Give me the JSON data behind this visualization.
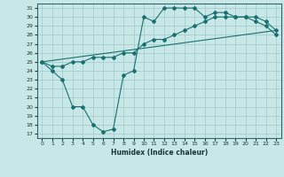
{
  "xlabel": "Humidex (Indice chaleur)",
  "xlim": [
    -0.5,
    23.5
  ],
  "ylim": [
    16.5,
    31.5
  ],
  "yticks": [
    17,
    18,
    19,
    20,
    21,
    22,
    23,
    24,
    25,
    26,
    27,
    28,
    29,
    30,
    31
  ],
  "xticks": [
    0,
    1,
    2,
    3,
    4,
    5,
    6,
    7,
    8,
    9,
    10,
    11,
    12,
    13,
    14,
    15,
    16,
    17,
    18,
    19,
    20,
    21,
    22,
    23
  ],
  "bg_color": "#c8e8e8",
  "line_color": "#1a7070",
  "grid_color": "#a0c8c8",
  "line1_x": [
    0,
    1,
    2,
    3,
    4,
    5,
    6,
    7,
    8,
    9,
    10,
    11,
    12,
    13,
    14,
    15,
    16,
    17,
    18,
    19,
    20,
    21,
    22,
    23
  ],
  "line1_y": [
    25,
    24,
    23,
    20,
    20,
    18,
    17.2,
    17.5,
    23.5,
    24,
    30,
    29.5,
    31,
    31,
    31,
    31,
    30,
    30.5,
    30.5,
    30,
    30,
    29.5,
    29,
    28
  ],
  "line2_x": [
    0,
    1,
    2,
    3,
    4,
    5,
    6,
    7,
    8,
    9,
    10,
    11,
    12,
    13,
    14,
    15,
    16,
    17,
    18,
    19,
    20,
    21,
    22,
    23
  ],
  "line2_y": [
    25,
    24.5,
    24.5,
    25,
    25,
    25.5,
    25.5,
    25.5,
    26,
    26,
    27,
    27.5,
    27.5,
    28,
    28.5,
    29,
    29.5,
    30,
    30,
    30,
    30,
    30,
    29.5,
    28.5
  ],
  "line3_x": [
    0,
    23
  ],
  "line3_y": [
    25,
    28.5
  ]
}
